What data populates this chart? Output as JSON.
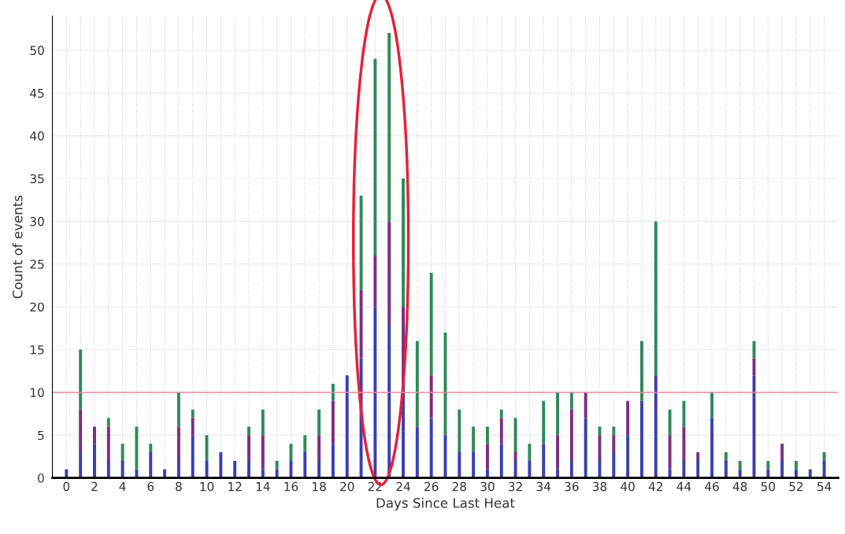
{
  "chart_data": {
    "type": "bar",
    "stacked": true,
    "xlabel": "Days Since Last Heat",
    "ylabel": "Count of events",
    "categories": [
      "0",
      null,
      "2",
      null,
      "4",
      null,
      "6",
      null,
      "8",
      null,
      "10",
      null,
      "12",
      null,
      "14",
      null,
      "16",
      null,
      "18",
      null,
      "20",
      null,
      "22",
      null,
      "24",
      null,
      "26",
      null,
      "28",
      null,
      "30",
      null,
      "32",
      null,
      "34",
      null,
      "36",
      null,
      "38",
      null,
      "40",
      null,
      "42",
      null,
      "44",
      null,
      "46",
      null,
      "48",
      null,
      "50",
      null,
      "52",
      null,
      "54"
    ],
    "series": [
      {
        "color": "#3b3fb0",
        "values": [
          1,
          3,
          4,
          2,
          2,
          1,
          3,
          1,
          2,
          5,
          2,
          3,
          2,
          2,
          1,
          1,
          2,
          3,
          2,
          4,
          12,
          14,
          20,
          18,
          12,
          6,
          7,
          5,
          3,
          3,
          1,
          4,
          2,
          2,
          4,
          1,
          2,
          7,
          2,
          3,
          5,
          9,
          12,
          1,
          2,
          2,
          7,
          2,
          1,
          12,
          1,
          2,
          1,
          1,
          2
        ]
      },
      {
        "color": "#7a2f7e",
        "values": [
          0,
          5,
          2,
          4,
          0,
          0,
          0,
          0,
          4,
          2,
          0,
          0,
          0,
          3,
          4,
          0,
          0,
          0,
          3,
          5,
          0,
          8,
          6,
          12,
          8,
          0,
          5,
          0,
          0,
          0,
          3,
          3,
          1,
          0,
          0,
          4,
          6,
          3,
          3,
          2,
          4,
          0,
          0,
          4,
          4,
          1,
          0,
          0,
          0,
          2,
          0,
          2,
          0,
          0,
          0
        ]
      },
      {
        "color": "#2f8a5a",
        "values": [
          0,
          7,
          0,
          1,
          2,
          5,
          1,
          0,
          4,
          1,
          3,
          0,
          0,
          1,
          3,
          1,
          2,
          2,
          3,
          2,
          0,
          11,
          23,
          22,
          15,
          10,
          12,
          12,
          5,
          3,
          2,
          1,
          4,
          2,
          5,
          5,
          2,
          0,
          1,
          1,
          0,
          7,
          18,
          3,
          3,
          0,
          3,
          1,
          1,
          2,
          1,
          0,
          1,
          0,
          1
        ]
      }
    ],
    "ylim": [
      0,
      54
    ],
    "yticks": [
      0,
      5,
      10,
      15,
      20,
      25,
      30,
      35,
      40,
      45,
      50
    ],
    "grid": true,
    "ref_lines": [
      {
        "axis": "y",
        "value": 10,
        "color": "#e88aa0"
      }
    ]
  }
}
